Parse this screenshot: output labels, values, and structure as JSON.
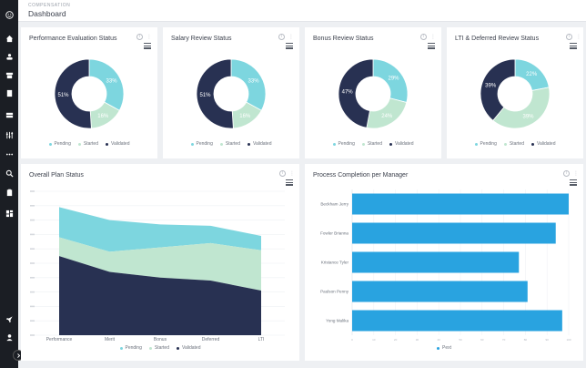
{
  "header": {
    "breadcrumb": "COMPENSATION",
    "title": "Dashboard"
  },
  "colors": {
    "pending": "#7dd6df",
    "started": "#c0e6d0",
    "validated": "#283152",
    "bar": "#29a3e0"
  },
  "donuts": [
    {
      "title": "Performance Evaluation Status",
      "labels": [
        "33%",
        "16%",
        "51%"
      ],
      "values": [
        33,
        16,
        51
      ]
    },
    {
      "title": "Salary Review Status",
      "labels": [
        "33%",
        "16%",
        "51%"
      ],
      "values": [
        33,
        16,
        51
      ]
    },
    {
      "title": "Bonus Review Status",
      "labels": [
        "29%",
        "24%",
        "47%"
      ],
      "values": [
        29,
        24,
        47
      ]
    },
    {
      "title": "LTI & Deferred Review Status",
      "labels": [
        "22%",
        "39%",
        "39%"
      ],
      "values": [
        22,
        39,
        39
      ]
    }
  ],
  "donut_legends": [
    [
      "Pending",
      "Started",
      "Validated"
    ],
    [
      "Pending",
      "Started",
      "Validated"
    ],
    [
      "Pending",
      "Started",
      "Validated"
    ],
    [
      "Pending",
      "Started",
      "Validated"
    ]
  ],
  "overall": {
    "title": "Overall Plan Status",
    "legend": [
      "Pending",
      "Started",
      "Validated"
    ]
  },
  "process": {
    "title": "Process Completion per Manager",
    "legend": "Pext"
  },
  "chart_data": [
    {
      "type": "pie",
      "title": "Performance Evaluation Status",
      "categories": [
        "Pending",
        "Started",
        "Validated"
      ],
      "values": [
        33,
        16,
        51
      ]
    },
    {
      "type": "pie",
      "title": "Salary Review Status",
      "categories": [
        "Pending",
        "Started",
        "Validated"
      ],
      "values": [
        33,
        16,
        51
      ]
    },
    {
      "type": "pie",
      "title": "Bonus Review Status",
      "categories": [
        "Pending",
        "Started",
        "Validated"
      ],
      "values": [
        29,
        24,
        47
      ]
    },
    {
      "type": "pie",
      "title": "LTI & Deferred Review Status",
      "categories": [
        "Pending",
        "Started",
        "Validated"
      ],
      "values": [
        22,
        39,
        39
      ]
    },
    {
      "type": "area",
      "title": "Overall Plan Status",
      "stacked": true,
      "categories": [
        "Performance",
        "Merit",
        "Bonus",
        "Deferred",
        "LTI"
      ],
      "series": [
        {
          "name": "Validated",
          "values": [
            55,
            44,
            40,
            38,
            31
          ]
        },
        {
          "name": "Started",
          "values": [
            13,
            14,
            21,
            26,
            28
          ]
        },
        {
          "name": "Pending",
          "values": [
            21,
            22,
            16,
            12,
            10
          ]
        }
      ],
      "ylim": [
        0,
        100
      ]
    },
    {
      "type": "bar",
      "orientation": "horizontal",
      "title": "Process Completion per Manager",
      "categories": [
        "Beckham Jerry",
        "Fowler Brianna",
        "Kristance Tyler",
        "Paulson Penny",
        "Yong Malika"
      ],
      "series": [
        {
          "name": "Pext",
          "values": [
            100,
            94,
            77,
            81,
            97
          ]
        }
      ],
      "xlim": [
        0,
        100
      ],
      "xticks": [
        "0",
        "10",
        "20",
        "30",
        "40",
        "50",
        "60",
        "70",
        "80",
        "90",
        "100"
      ]
    }
  ]
}
